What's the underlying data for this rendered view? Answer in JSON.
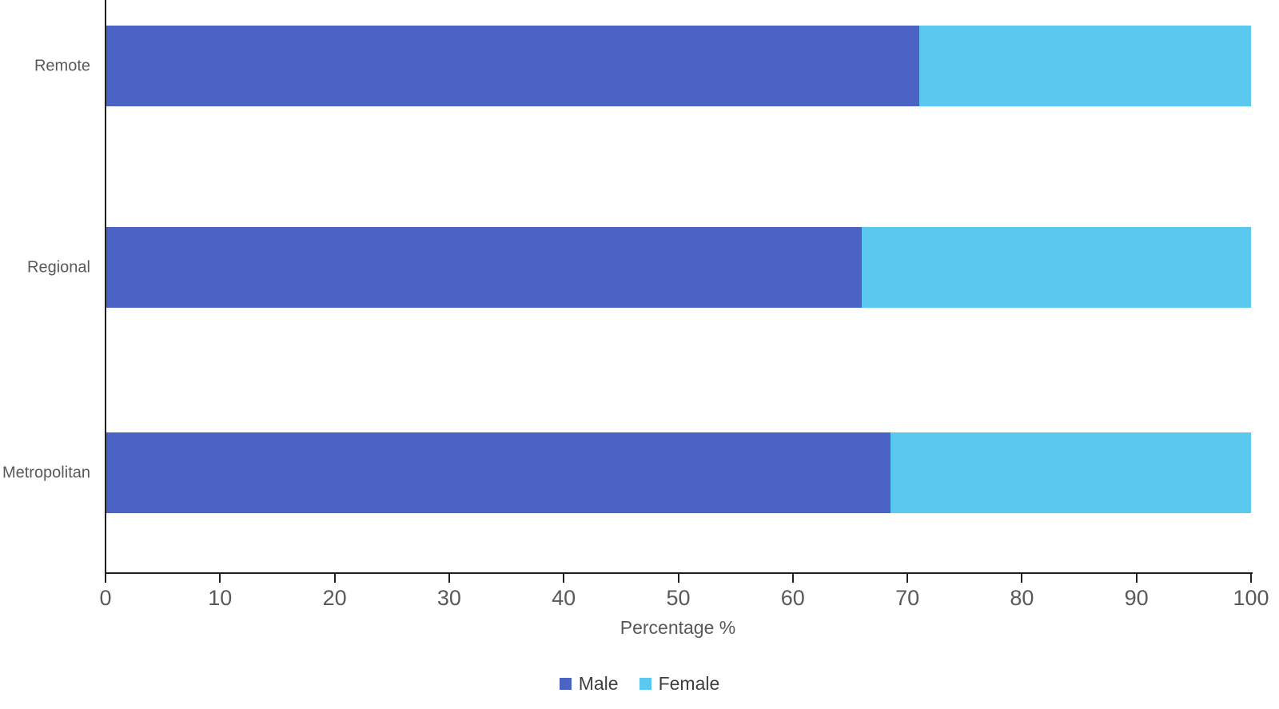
{
  "chart_data": {
    "type": "bar",
    "orientation": "horizontal",
    "stacked": true,
    "title": "",
    "categories": [
      "Remote",
      "Regional",
      "Metropolitan"
    ],
    "series": [
      {
        "name": "Male",
        "color": "#4C63C6",
        "values": [
          71,
          66,
          68.5
        ]
      },
      {
        "name": "Female",
        "color": "#5BC8EF",
        "values": [
          29,
          34,
          31.5
        ]
      }
    ],
    "xlabel": "Percentage %",
    "xlim": [
      0,
      100
    ],
    "xticks": [
      0,
      10,
      20,
      30,
      40,
      50,
      60,
      70,
      80,
      90,
      100
    ],
    "grid": false,
    "legend_position": "bottom",
    "colors": {
      "axis": "#1f1f1f",
      "tick_label": "#595959",
      "category_label": "#595959",
      "legend_text": "#404040",
      "background": "#ffffff"
    }
  }
}
